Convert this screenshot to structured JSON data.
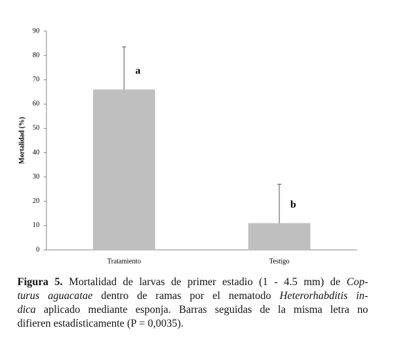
{
  "chart_data": {
    "type": "bar",
    "ylabel": "Mortalidad (%)",
    "categories": [
      "Tratamiento",
      "Testigo"
    ],
    "values": [
      66,
      11
    ],
    "errors": [
      17.5,
      16
    ],
    "annotations": [
      "a",
      "b"
    ],
    "color": "#bfbfbf",
    "ylim": [
      0,
      90
    ],
    "yticks": [
      0,
      10,
      20,
      30,
      40,
      50,
      60,
      70,
      80,
      90
    ],
    "grid": false
  },
  "caption": [
    [
      {
        "text": "Figura 5.",
        "bold": true
      },
      {
        "text": " Mortalidad de larvas de primer estadio (1 - 4.5 mm) de "
      },
      {
        "text": "Cop-",
        "italic": true
      }
    ],
    [
      {
        "text": "turus aguacatae",
        "italic": true
      },
      {
        "text": " dentro de ramas por el nematodo "
      },
      {
        "text": "Heterorhabditis in-",
        "italic": true
      }
    ],
    [
      {
        "text": "dica",
        "italic": true
      },
      {
        "text": " aplicado mediante esponja. Barras seguidas de la misma letra no"
      }
    ],
    [
      {
        "text": "difieren estadísticamente (P = 0,0035)."
      }
    ]
  ]
}
